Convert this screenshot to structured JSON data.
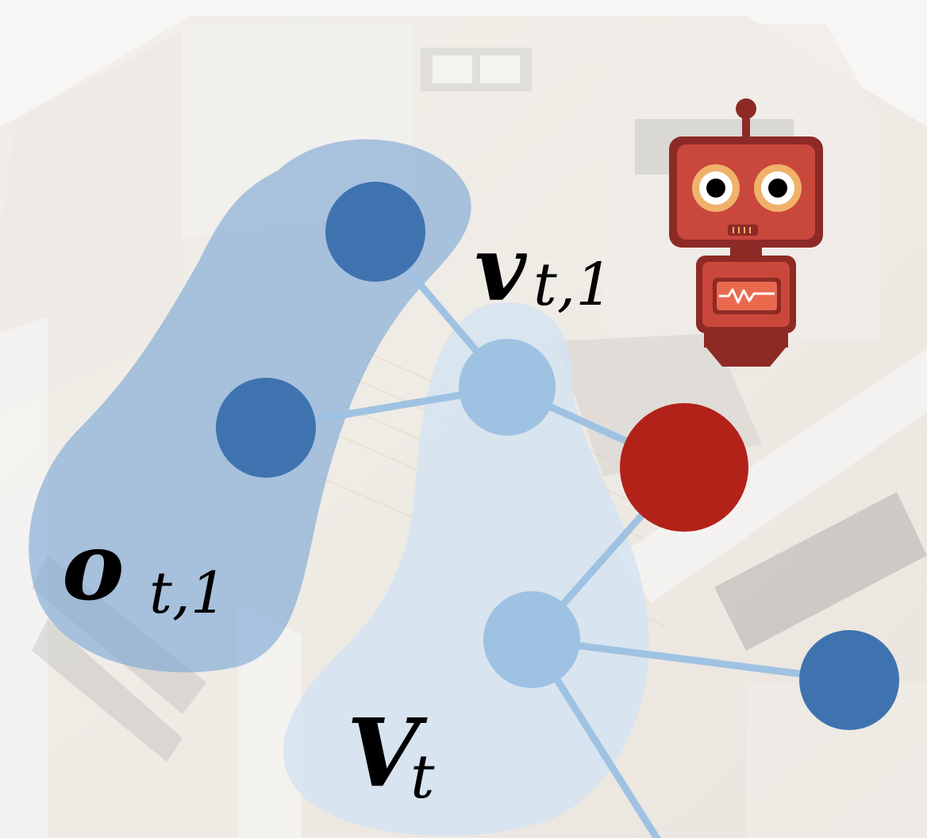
{
  "labels": {
    "observation_symbol": "o",
    "observation_subscript": "t,1",
    "node_symbol": "v",
    "node_subscript": "t,1",
    "set_symbol": "V",
    "set_subscript": "t"
  },
  "colors": {
    "observation_node": "#3f73b0",
    "graph_node": "#9fc2e3",
    "agent_node": "#b32218",
    "edge": "#9fc2e3",
    "observation_region": "#7fa9d6",
    "set_region": "#c8dcef",
    "robot_body": "#c9473b",
    "robot_dark": "#8e2a25",
    "robot_eye_ring": "#f0b16a"
  },
  "icons": {
    "agent": "robot-icon",
    "background": "apartment-floorplan-icon"
  }
}
